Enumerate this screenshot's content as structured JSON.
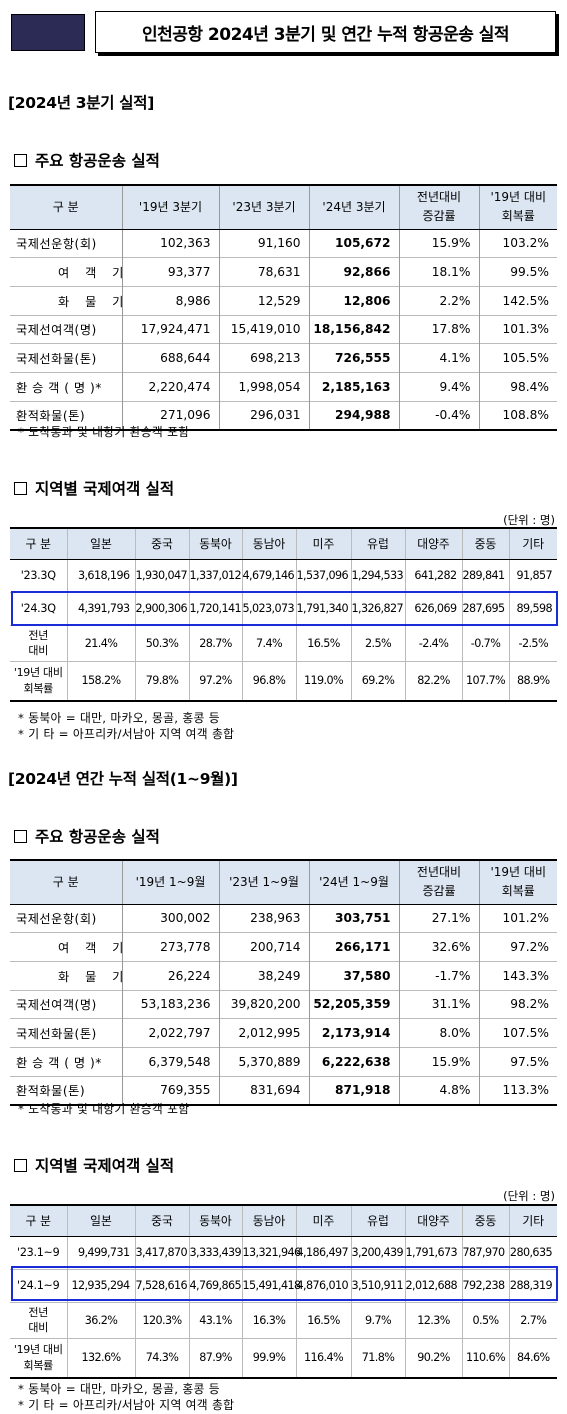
{
  "page": {
    "title": "인천공항 2024년 3분기 및 연간 누적 항공운송 실적"
  },
  "q3": {
    "section_title": "[2024년 3분기 실적]",
    "main": {
      "heading": "주요 항공운송 실적",
      "headers": [
        "구   분",
        "'19년 3분기",
        "'23년 3분기",
        "'24년 3분기",
        "전년대비\n증감률",
        "'19년 대비\n회복률"
      ],
      "rows": [
        {
          "label": "국제선운항(회)",
          "v": [
            "102,363",
            "91,160",
            "105,672",
            "15.9%",
            "103.2%"
          ]
        },
        {
          "label": "여 객 기",
          "v": [
            "93,377",
            "78,631",
            "92,866",
            "18.1%",
            "99.5%"
          ]
        },
        {
          "label": "화 물 기",
          "v": [
            "8,986",
            "12,529",
            "12,806",
            "2.2%",
            "142.5%"
          ]
        },
        {
          "label": "국제선여객(명)",
          "v": [
            "17,924,471",
            "15,419,010",
            "18,156,842",
            "17.8%",
            "101.3%"
          ]
        },
        {
          "label": "국제선화물(톤)",
          "v": [
            "688,644",
            "698,213",
            "726,555",
            "4.1%",
            "105.5%"
          ]
        },
        {
          "label": "환 승 객 ( 명 )*",
          "v": [
            "2,220,474",
            "1,998,054",
            "2,185,163",
            "9.4%",
            "98.4%"
          ]
        },
        {
          "label": "환적화물(톤)",
          "v": [
            "271,096",
            "296,031",
            "294,988",
            "-0.4%",
            "108.8%"
          ]
        }
      ],
      "note": "* 도착통과 및 내항기 환승객 포함"
    },
    "region": {
      "heading": "지역별 국제여객 실적",
      "unit": "(단위 : 명)",
      "headers": [
        "구 분",
        "일본",
        "중국",
        "동북아",
        "동남아",
        "미주",
        "유럽",
        "대양주",
        "중동",
        "기타"
      ],
      "rows": [
        {
          "label": "'23.3Q",
          "v": [
            "3,618,196",
            "1,930,047",
            "1,337,012",
            "4,679,146",
            "1,537,096",
            "1,294,533",
            "641,282",
            "289,841",
            "91,857"
          ]
        },
        {
          "label": "'24.3Q",
          "v": [
            "4,391,793",
            "2,900,306",
            "1,720,141",
            "5,023,073",
            "1,791,340",
            "1,326,827",
            "626,069",
            "287,695",
            "89,598"
          ]
        },
        {
          "label": "전년\n대비",
          "v": [
            "21.4%",
            "50.3%",
            "28.7%",
            "7.4%",
            "16.5%",
            "2.5%",
            "-2.4%",
            "-0.7%",
            "-2.5%"
          ]
        },
        {
          "label": "'19년 대비\n회복률",
          "v": [
            "158.2%",
            "79.8%",
            "97.2%",
            "96.8%",
            "119.0%",
            "69.2%",
            "82.2%",
            "107.7%",
            "88.9%"
          ]
        }
      ],
      "notes": [
        "* 동북아 = 대만, 마카오, 몽골, 홍콩 등",
        "* 기  타 = 아프리카/서남아 지역 여객 총합"
      ]
    }
  },
  "cum": {
    "section_title": "[2024년 연간 누적 실적(1~9월)]",
    "main": {
      "heading": "주요 항공운송 실적",
      "headers": [
        "구   분",
        "'19년 1~9월",
        "'23년 1~9월",
        "'24년 1~9월",
        "전년대비\n증감률",
        "'19년 대비\n회복률"
      ],
      "rows": [
        {
          "label": "국제선운항(회)",
          "v": [
            "300,002",
            "238,963",
            "303,751",
            "27.1%",
            "101.2%"
          ]
        },
        {
          "label": "여 객 기",
          "v": [
            "273,778",
            "200,714",
            "266,171",
            "32.6%",
            "97.2%"
          ]
        },
        {
          "label": "화 물 기",
          "v": [
            "26,224",
            "38,249",
            "37,580",
            "-1.7%",
            "143.3%"
          ]
        },
        {
          "label": "국제선여객(명)",
          "v": [
            "53,183,236",
            "39,820,200",
            "52,205,359",
            "31.1%",
            "98.2%"
          ]
        },
        {
          "label": "국제선화물(톤)",
          "v": [
            "2,022,797",
            "2,012,995",
            "2,173,914",
            "8.0%",
            "107.5%"
          ]
        },
        {
          "label": "환 승 객 ( 명 )*",
          "v": [
            "6,379,548",
            "5,370,889",
            "6,222,638",
            "15.9%",
            "97.5%"
          ]
        },
        {
          "label": "환적화물(톤)",
          "v": [
            "769,355",
            "831,694",
            "871,918",
            "4.8%",
            "113.3%"
          ]
        }
      ],
      "note": "* 도착통과 및 내항기 환승객 포함"
    },
    "region": {
      "heading": "지역별 국제여객 실적",
      "unit": "(단위 : 명)",
      "headers": [
        "구 분",
        "일본",
        "중국",
        "동북아",
        "동남아",
        "미주",
        "유럽",
        "대양주",
        "중동",
        "기타"
      ],
      "rows": [
        {
          "label": "'23.1~9",
          "v": [
            "9,499,731",
            "3,417,870",
            "3,333,439",
            "13,321,946",
            "4,186,497",
            "3,200,439",
            "1,791,673",
            "787,970",
            "280,635"
          ]
        },
        {
          "label": "'24.1~9",
          "v": [
            "12,935,294",
            "7,528,616",
            "4,769,865",
            "15,491,418",
            "4,876,010",
            "3,510,911",
            "2,012,688",
            "792,238",
            "288,319"
          ]
        },
        {
          "label": "전년\n대비",
          "v": [
            "36.2%",
            "120.3%",
            "43.1%",
            "16.3%",
            "16.5%",
            "9.7%",
            "12.3%",
            "0.5%",
            "2.7%"
          ]
        },
        {
          "label": "'19년 대비\n회복률",
          "v": [
            "132.6%",
            "74.3%",
            "87.9%",
            "99.9%",
            "116.4%",
            "71.8%",
            "90.2%",
            "110.6%",
            "84.6%"
          ]
        }
      ],
      "notes": [
        "* 동북아 = 대만, 마카오, 몽골, 홍콩 등",
        "* 기  타 = 아프리카/서남아 지역 여객 총합"
      ]
    }
  }
}
